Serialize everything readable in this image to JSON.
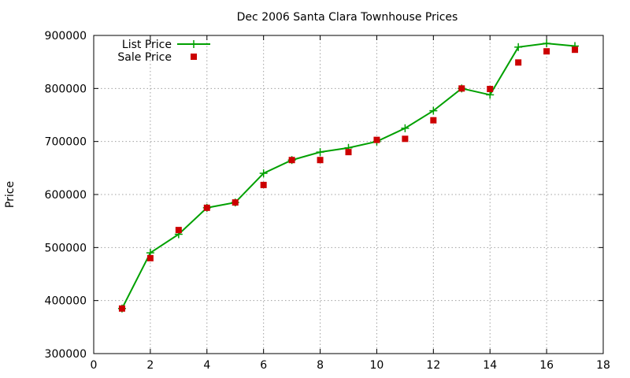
{
  "chart_data": {
    "type": "line",
    "title": "Dec 2006 Santa Clara Townhouse Prices",
    "xlabel": "",
    "ylabel": "Price",
    "xlim": [
      0,
      18
    ],
    "ylim": [
      300000,
      900000
    ],
    "x_ticks": [
      0,
      2,
      4,
      6,
      8,
      10,
      12,
      14,
      16,
      18
    ],
    "y_ticks": [
      300000,
      400000,
      500000,
      600000,
      700000,
      800000,
      900000
    ],
    "grid": true,
    "legend_position": "top-left",
    "x": [
      1,
      2,
      3,
      4,
      5,
      6,
      7,
      8,
      9,
      10,
      11,
      12,
      13,
      14,
      15,
      16,
      17
    ],
    "series": [
      {
        "name": "List Price",
        "style": "line-with-plus-markers",
        "color": "#00a000",
        "values": [
          385000,
          490000,
          525000,
          575000,
          585000,
          640000,
          665000,
          680000,
          688000,
          700000,
          725000,
          758000,
          800000,
          788000,
          878000,
          885000,
          880000
        ]
      },
      {
        "name": "Sale Price",
        "style": "square-markers",
        "color": "#cc0000",
        "values": [
          385000,
          480000,
          533000,
          575000,
          585000,
          618000,
          665000,
          665000,
          680000,
          703000,
          705000,
          740000,
          800000,
          799000,
          849000,
          870000,
          873000
        ]
      }
    ]
  }
}
